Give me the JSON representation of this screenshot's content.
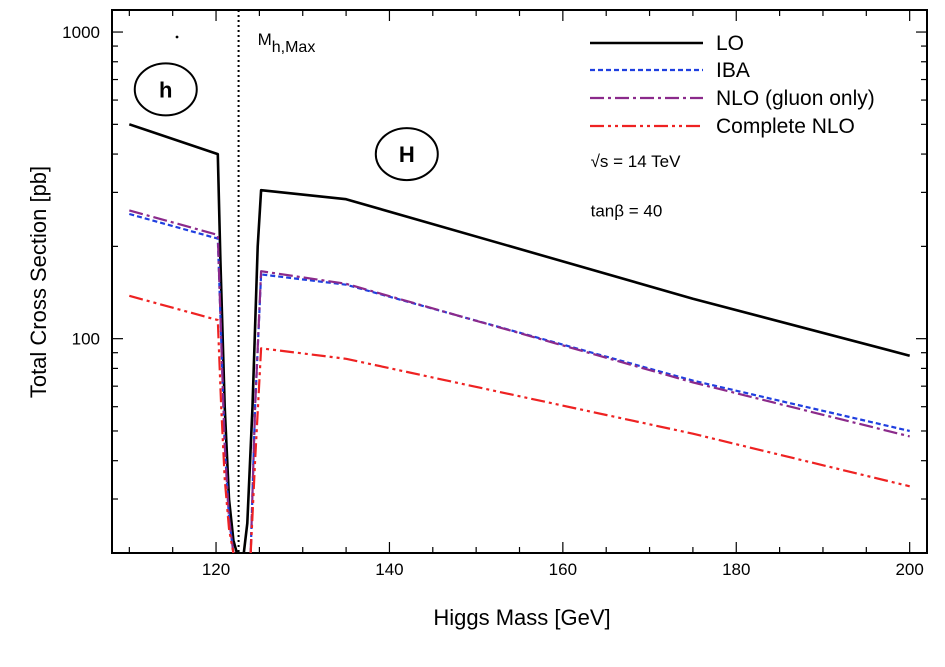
{
  "chart_data": {
    "type": "line",
    "xlabel": "Higgs Mass  [GeV]",
    "ylabel": "Total Cross Section  [pb]",
    "xlim": [
      108,
      202
    ],
    "ylim": [
      20,
      1180
    ],
    "yscale": "log",
    "xticks": [
      120,
      140,
      160,
      180,
      200
    ],
    "xtick_labels": [
      "120",
      "140",
      "160",
      "180",
      "200"
    ],
    "yticks": [
      100,
      1000
    ],
    "ytick_labels": [
      "100",
      "1000"
    ],
    "legend_position": "top-right",
    "grid": false,
    "vline": {
      "x": 122.6,
      "label": "M",
      "label_sub": "h,Max",
      "style": "dotted"
    },
    "region_labels": [
      {
        "text": "h",
        "x": 114.2,
        "y": 650
      },
      {
        "text": "H",
        "x": 142.0,
        "y": 400
      }
    ],
    "annotations": [
      {
        "text": "√s = 14 TeV",
        "x": 163.2,
        "y": 380
      },
      {
        "text": "tanβ = 40",
        "x": 163.2,
        "y": 262
      }
    ],
    "series": [
      {
        "name": "LO",
        "color": "#000000",
        "dash": "solid",
        "x": [
          110,
          120.2,
          120.5,
          121.0,
          121.5,
          122.0,
          122.4
        ],
        "y": [
          500,
          400,
          180,
          60,
          30,
          22,
          20
        ],
        "x2": [
          123.2,
          123.6,
          124.2,
          124.8,
          125.2,
          135,
          175,
          200
        ],
        "y2": [
          20,
          25,
          60,
          200,
          305,
          285,
          135,
          88
        ]
      },
      {
        "name": "IBA",
        "color": "#1f3fe0",
        "dash": "5,3",
        "x": [
          110,
          120.2,
          120.6,
          121.0,
          121.5,
          122.0
        ],
        "y": [
          255,
          212,
          100,
          45,
          26,
          20
        ],
        "x2": [
          124.0,
          124.5,
          125.2,
          135,
          175,
          200
        ],
        "y2": [
          20,
          60,
          162,
          150,
          73,
          50
        ]
      },
      {
        "name": "NLO (gluon only)",
        "color": "#8b2a8b",
        "dash": "14,4,3,4",
        "x": [
          110,
          120.2,
          120.6,
          121.0,
          121.5,
          122.0
        ],
        "y": [
          262,
          218,
          100,
          45,
          26,
          20
        ],
        "x2": [
          124.0,
          124.5,
          125.2,
          135,
          175,
          200
        ],
        "y2": [
          20,
          60,
          166,
          151,
          72,
          48
        ]
      },
      {
        "name": "Complete NLO",
        "color": "#ee2222",
        "dash": "14,4,3,4,3,4",
        "x": [
          110,
          120.2,
          120.6,
          121.0,
          121.5,
          122.0
        ],
        "y": [
          138,
          115,
          60,
          35,
          24,
          20
        ],
        "x2": [
          124.0,
          124.5,
          125.2,
          135,
          175,
          200
        ],
        "y2": [
          20,
          40,
          93,
          86,
          49,
          33
        ]
      }
    ]
  }
}
